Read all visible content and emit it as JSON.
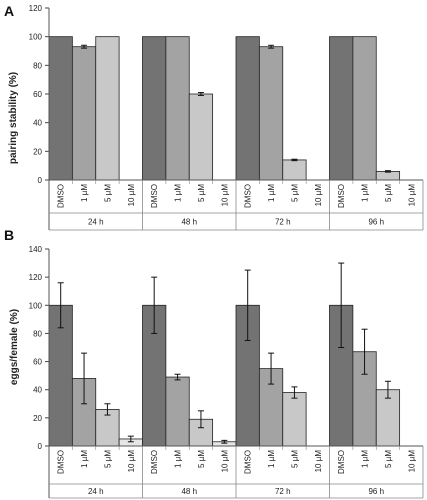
{
  "chart_data": [
    {
      "type": "bar",
      "panel_label": "A",
      "title": "",
      "ylabel": "pairing stability (%)",
      "ylim": [
        0,
        120
      ],
      "yticks": [
        "0",
        "20",
        "40",
        "60",
        "80",
        "100",
        "120"
      ],
      "categories": [
        "DMSO",
        "1 µM",
        "5 µM",
        "10 µM"
      ],
      "groups": [
        "24 h",
        "48 h",
        "72 h",
        "96 h"
      ],
      "colors": [
        "#737373",
        "#a3a3a3",
        "#c8c8c8",
        "#e6e6e6"
      ],
      "values": [
        [
          100,
          93,
          100,
          0
        ],
        [
          100,
          100,
          60,
          0
        ],
        [
          100,
          93,
          14,
          0
        ],
        [
          100,
          100,
          6,
          0
        ]
      ],
      "errors": [
        [
          0,
          1,
          0,
          0
        ],
        [
          0,
          0,
          1,
          0
        ],
        [
          0,
          1,
          0.5,
          0
        ],
        [
          0,
          0,
          0.5,
          0
        ]
      ],
      "grid": false
    },
    {
      "type": "bar",
      "panel_label": "B",
      "title": "",
      "ylabel": "eggs/female (%)",
      "ylim": [
        0,
        140
      ],
      "yticks": [
        "0",
        "20",
        "40",
        "60",
        "80",
        "100",
        "120",
        "140"
      ],
      "categories": [
        "DMSO",
        "1 µM",
        "5 µM",
        "10 µM"
      ],
      "groups": [
        "24 h",
        "48 h",
        "72 h",
        "96 h"
      ],
      "colors": [
        "#737373",
        "#a3a3a3",
        "#c8c8c8",
        "#e6e6e6"
      ],
      "values": [
        [
          100,
          48,
          26,
          5
        ],
        [
          100,
          49,
          19,
          3
        ],
        [
          100,
          55,
          38,
          0
        ],
        [
          100,
          67,
          40,
          0
        ]
      ],
      "errors": [
        [
          16,
          18,
          4,
          2
        ],
        [
          20,
          2,
          6,
          1
        ],
        [
          25,
          11,
          4,
          0
        ],
        [
          30,
          16,
          6,
          0
        ]
      ],
      "grid": false
    }
  ]
}
